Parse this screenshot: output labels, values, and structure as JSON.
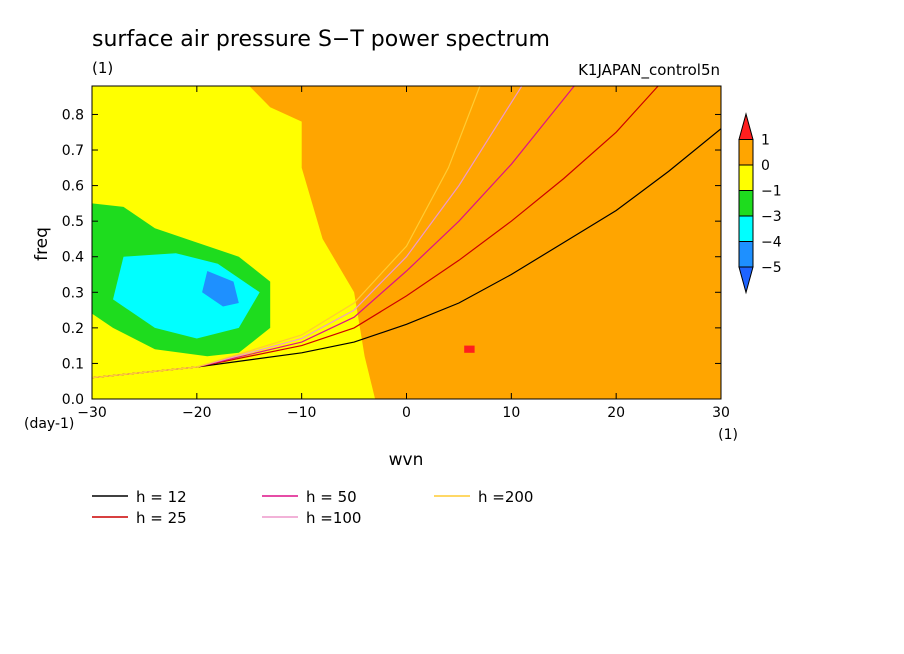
{
  "chart_data": {
    "type": "heatmap",
    "title": "surface air pressure S−T power spectrum",
    "subtitle_left": "(1)",
    "subtitle_right": "K1JAPAN_control5n",
    "xlabel": "wvn",
    "ylabel": "freq",
    "x_unit": "(1)",
    "y_unit": "(day-1)",
    "xlim": [
      -30,
      30
    ],
    "ylim": [
      0,
      0.88
    ],
    "xticks": [
      -30,
      -20,
      -10,
      0,
      10,
      20,
      30
    ],
    "xtick_labels": [
      "−30",
      "−20",
      "−10",
      "0",
      "10",
      "20",
      "30"
    ],
    "yticks": [
      0.0,
      0.1,
      0.2,
      0.3,
      0.4,
      0.5,
      0.6,
      0.7,
      0.8
    ],
    "ytick_labels": [
      "0.0",
      "0.1",
      "0.2",
      "0.3",
      "0.4",
      "0.5",
      "0.6",
      "0.7",
      "0.8"
    ],
    "colorbar": {
      "levels": [
        "1",
        "0",
        "−1",
        "−3",
        "−4",
        "−5"
      ],
      "colors": [
        "#ff1e1e",
        "#ffa500",
        "#ffff00",
        "#1edc1e",
        "#00ffff",
        "#1e90ff",
        "#1e64ff"
      ]
    },
    "regions": [
      {
        "name": "background",
        "value_class": "-1..0",
        "color": "#ffff00"
      },
      {
        "name": "orange-band",
        "value_class": "0..1",
        "color": "#ffa500",
        "polygon": [
          [
            -8,
            0.88
          ],
          [
            2,
            0.88
          ],
          [
            30,
            0.88
          ],
          [
            30,
            0.0
          ],
          [
            -3,
            0.0
          ],
          [
            -4,
            0.12
          ],
          [
            -5,
            0.3
          ],
          [
            -8,
            0.45
          ],
          [
            -10,
            0.65
          ],
          [
            -10,
            0.78
          ],
          [
            -13,
            0.82
          ],
          [
            -15,
            0.88
          ]
        ]
      },
      {
        "name": "green-patch",
        "value_class": "-3..-1",
        "color": "#1edc1e",
        "polygon": [
          [
            -30,
            0.55
          ],
          [
            -27,
            0.54
          ],
          [
            -24,
            0.48
          ],
          [
            -20,
            0.44
          ],
          [
            -16,
            0.4
          ],
          [
            -13,
            0.33
          ],
          [
            -13,
            0.2
          ],
          [
            -16,
            0.13
          ],
          [
            -19,
            0.12
          ],
          [
            -24,
            0.14
          ],
          [
            -28,
            0.2
          ],
          [
            -30,
            0.24
          ]
        ]
      },
      {
        "name": "cyan-patch",
        "value_class": "-4..-3",
        "color": "#00ffff",
        "polygon": [
          [
            -27,
            0.4
          ],
          [
            -22,
            0.41
          ],
          [
            -18,
            0.38
          ],
          [
            -14,
            0.3
          ],
          [
            -16,
            0.2
          ],
          [
            -20,
            0.17
          ],
          [
            -24,
            0.2
          ],
          [
            -28,
            0.28
          ]
        ]
      },
      {
        "name": "blue-patch",
        "value_class": "-5..-4",
        "color": "#1e90ff",
        "polygon": [
          [
            -19,
            0.36
          ],
          [
            -16.5,
            0.33
          ],
          [
            -16,
            0.27
          ],
          [
            -17.5,
            0.26
          ],
          [
            -19.5,
            0.3
          ]
        ]
      },
      {
        "name": "red-spot",
        "value_class": ">1",
        "color": "#ff1e1e",
        "polygon": [
          [
            5.5,
            0.15
          ],
          [
            6.5,
            0.15
          ],
          [
            6.5,
            0.13
          ],
          [
            5.5,
            0.13
          ]
        ]
      }
    ],
    "series": [
      {
        "name": "h = 12",
        "color": "#000000",
        "x": [
          -30,
          -20,
          -10,
          -5,
          0,
          5,
          10,
          15,
          20,
          25,
          30
        ],
        "y": [
          0.06,
          0.09,
          0.13,
          0.16,
          0.21,
          0.27,
          0.35,
          0.44,
          0.53,
          0.64,
          0.76
        ]
      },
      {
        "name": "h = 25",
        "color": "#cc0000",
        "x": [
          -30,
          -20,
          -10,
          -5,
          0,
          5,
          10,
          15,
          20,
          24
        ],
        "y": [
          0.06,
          0.09,
          0.15,
          0.2,
          0.29,
          0.39,
          0.5,
          0.62,
          0.75,
          0.88
        ]
      },
      {
        "name": "h = 50",
        "color": "#dd1188",
        "x": [
          -30,
          -20,
          -10,
          -5,
          0,
          5,
          10,
          16
        ],
        "y": [
          0.06,
          0.09,
          0.16,
          0.23,
          0.36,
          0.5,
          0.66,
          0.88
        ]
      },
      {
        "name": "h =100",
        "color": "#ee99cc",
        "x": [
          -30,
          -20,
          -10,
          -5,
          0,
          5,
          11
        ],
        "y": [
          0.06,
          0.09,
          0.17,
          0.25,
          0.4,
          0.6,
          0.88
        ]
      },
      {
        "name": "h =200",
        "color": "#ffcc33",
        "x": [
          -30,
          -20,
          -10,
          -5,
          0,
          4,
          7
        ],
        "y": [
          0.06,
          0.09,
          0.18,
          0.27,
          0.43,
          0.65,
          0.88
        ]
      }
    ],
    "legend_placement": "bottom"
  }
}
